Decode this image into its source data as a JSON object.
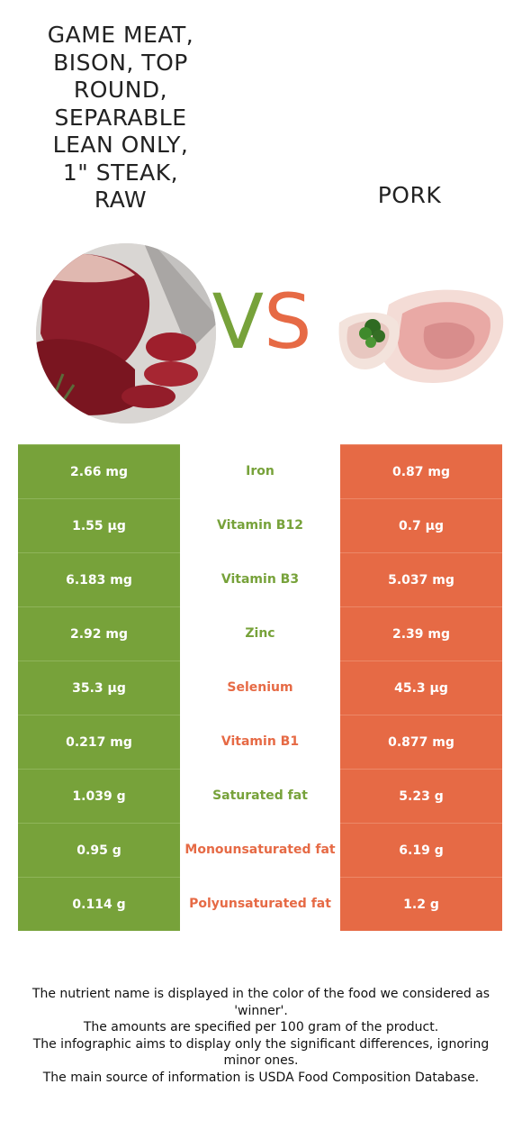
{
  "left_food": {
    "title": "GAME MEAT,\nBISON, TOP\nROUND,\nSEPARABLE\nLEAN ONLY,\n1\" STEAK,\nRAW",
    "color": "#77a23a"
  },
  "right_food": {
    "title": "PORK",
    "color": "#e66a45"
  },
  "vs": {
    "v": "V",
    "s": "S"
  },
  "rows": [
    {
      "left": "2.66 mg",
      "nutrient": "Iron",
      "right": "0.87 mg",
      "winner": "left"
    },
    {
      "left": "1.55 µg",
      "nutrient": "Vitamin B12",
      "right": "0.7 µg",
      "winner": "left"
    },
    {
      "left": "6.183 mg",
      "nutrient": "Vitamin B3",
      "right": "5.037 mg",
      "winner": "left"
    },
    {
      "left": "2.92 mg",
      "nutrient": "Zinc",
      "right": "2.39 mg",
      "winner": "left"
    },
    {
      "left": "35.3 µg",
      "nutrient": "Selenium",
      "right": "45.3 µg",
      "winner": "right"
    },
    {
      "left": "0.217 mg",
      "nutrient": "Vitamin B1",
      "right": "0.877 mg",
      "winner": "right"
    },
    {
      "left": "1.039 g",
      "nutrient": "Saturated fat",
      "right": "5.23 g",
      "winner": "left"
    },
    {
      "left": "0.95 g",
      "nutrient": "Monounsaturated fat",
      "right": "6.19 g",
      "winner": "right"
    },
    {
      "left": "0.114 g",
      "nutrient": "Polyunsaturated fat",
      "right": "1.2 g",
      "winner": "right"
    }
  ],
  "footer": [
    "The nutrient name is displayed in the color of the food we considered as 'winner'.",
    "The amounts are specified per 100 gram of the product.",
    "The infographic aims to display only the significant differences, ignoring minor ones.",
    "The main source of information is USDA Food Composition Database."
  ]
}
